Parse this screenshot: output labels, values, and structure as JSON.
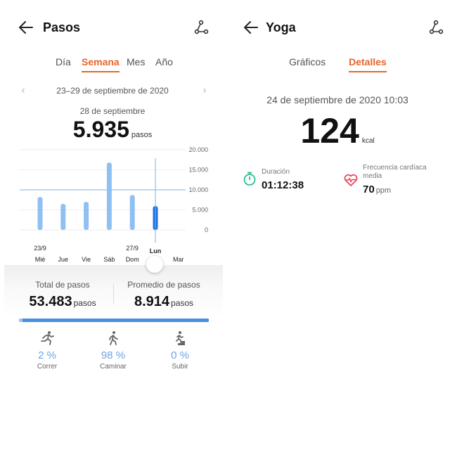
{
  "colors": {
    "accent": "#e8642c",
    "bar": "#8ec0f2",
    "bar_selected": "#1a73e8",
    "goal_line": "#7fb0e0",
    "duration_icon": "#2bbf94",
    "heart_icon": "#e8445a"
  },
  "steps_screen": {
    "title": "Pasos",
    "icons": {
      "back": "arrow-left-icon",
      "share": "share-route-icon"
    },
    "tabs": [
      {
        "label": "Día",
        "active": false
      },
      {
        "label": "Semana",
        "active": true
      },
      {
        "label": "Mes",
        "active": false
      },
      {
        "label": "Año",
        "active": false
      }
    ],
    "date_range": "23–29 de septiembre de 2020",
    "selected_date": "28 de septiembre",
    "selected_steps": "5.935",
    "steps_unit": "pasos",
    "total_label": "Total de pasos",
    "total_value": "53.483",
    "average_label": "Promedio de pasos",
    "average_value": "8.914",
    "activities": [
      {
        "label": "Correr",
        "percent": "2 %",
        "icon": "running-icon"
      },
      {
        "label": "Caminar",
        "percent": "98 %",
        "icon": "walking-icon"
      },
      {
        "label": "Subir",
        "percent": "0 %",
        "icon": "climbing-stairs-icon"
      }
    ]
  },
  "chart_data": {
    "type": "bar",
    "categories": [
      "Mié",
      "Jue",
      "Vie",
      "Sáb",
      "Dom",
      "Lun",
      "Mar"
    ],
    "date_labels": [
      "23/9",
      "",
      "",
      "",
      "27/9",
      "",
      ""
    ],
    "values": [
      8200,
      6500,
      7000,
      16800,
      8700,
      5935,
      0
    ],
    "selected_index": 5,
    "goal": 10000,
    "ylim": [
      0,
      20000
    ],
    "yticks": [
      "20.000",
      "15.000",
      "10.000",
      "5.000",
      "0"
    ],
    "ytick_values": [
      20000,
      15000,
      10000,
      5000,
      0
    ],
    "grid": true
  },
  "yoga_screen": {
    "title": "Yoga",
    "icons": {
      "back": "arrow-left-icon",
      "share": "share-route-icon"
    },
    "tabs": [
      {
        "label": "Gráficos",
        "active": false
      },
      {
        "label": "Detalles",
        "active": true
      }
    ],
    "datetime": "24 de septiembre de 2020 10:03",
    "calories": "124",
    "calories_unit": "kcal",
    "duration_label": "Duración",
    "duration_value": "01:12:38",
    "heart_label_line1": "Frecuencia cardíaca",
    "heart_label_line2": "media",
    "heart_value": "70",
    "heart_unit": "ppm"
  }
}
